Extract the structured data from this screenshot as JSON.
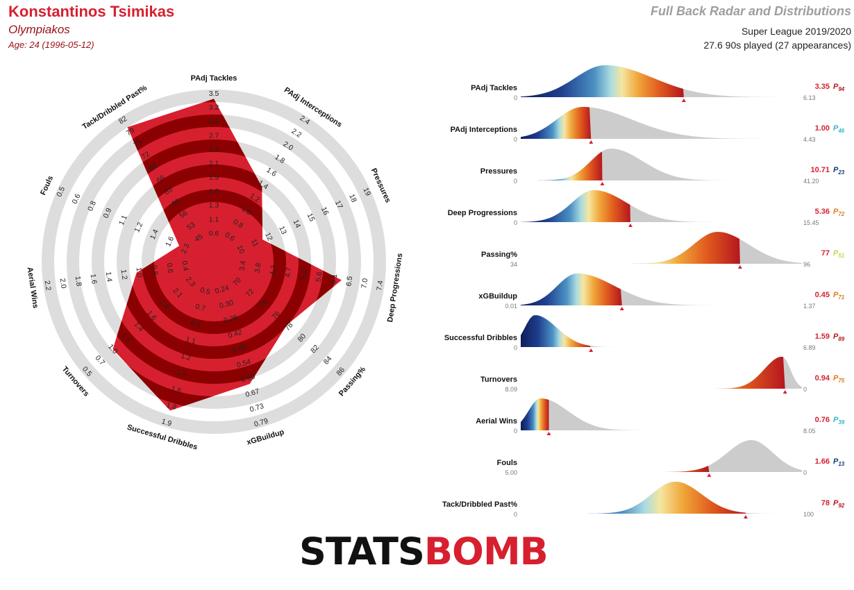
{
  "header": {
    "player_name": "Konstantinos Tsimikas",
    "team": "Olympiakos",
    "age": "Age: 24 (1996-05-12)",
    "title": "Full Back Radar and Distributions",
    "competition": "Super League 2019/2020",
    "minutes": "27.6 90s played (27 appearances)"
  },
  "logo": {
    "part1": "STATS",
    "part2": "BOMB"
  },
  "colors": {
    "accent": "#d7202f",
    "dark_red": "#8b0000",
    "grey": "#dddddd"
  },
  "chart_data": [
    {
      "type": "radar",
      "axes": [
        {
          "label": "PAdj Tackles",
          "ticks": [
            "0.6",
            "1.1",
            "1.3",
            "1.6",
            "1.9",
            "2.1",
            "2.4",
            "2.7",
            "2.9",
            "3.2",
            "3.5"
          ],
          "value": 3.35,
          "fraction": 0.94
        },
        {
          "label": "PAdj Interceptions",
          "ticks": [
            "0.6",
            "0.8",
            "1.0",
            "1.2",
            "1.4",
            "1.6",
            "1.8",
            "2.0",
            "2.2",
            "2.4"
          ],
          "value": 1.0,
          "fraction": 0.46
        },
        {
          "label": "Pressures",
          "ticks": [
            "10",
            "11",
            "12",
            "13",
            "14",
            "15",
            "16",
            "17",
            "18",
            "19"
          ],
          "value": 10.71,
          "fraction": 0.23
        },
        {
          "label": "Deep Progressions",
          "ticks": [
            "3.4",
            "3.8",
            "4.3",
            "4.7",
            "5.2",
            "5.6",
            "6.1",
            "6.5",
            "7.0",
            "7.4"
          ],
          "value": 5.36,
          "fraction": 0.72
        },
        {
          "label": "Passing%",
          "ticks": [
            "70",
            "72",
            "74",
            "76",
            "78",
            "80",
            "82",
            "84",
            "86"
          ],
          "value": 77,
          "fraction": 0.51
        },
        {
          "label": "xGBuildup",
          "ticks": [
            "0.24",
            "0.30",
            "0.36",
            "0.42",
            "0.48",
            "0.54",
            "0.60",
            "0.67",
            "0.73",
            "0.79"
          ],
          "value": 0.45,
          "fraction": 0.71
        },
        {
          "label": "Successful Dribbles",
          "ticks": [
            "0.5",
            "0.7",
            "0.9",
            "1.1",
            "1.2",
            "1.4",
            "1.6",
            "1.8",
            "1.9"
          ],
          "value": 1.59,
          "fraction": 0.89
        },
        {
          "label": "Turnovers",
          "ticks": [
            "2.3",
            "2.1",
            "1.8",
            "1.6",
            "1.4",
            "1.3",
            "1.0",
            "0.7",
            "0.5"
          ],
          "value": 0.94,
          "fraction": 0.75
        },
        {
          "label": "Aerial Wins",
          "ticks": [
            "0.4",
            "0.6",
            "0.8",
            "1.0",
            "1.2",
            "1.4",
            "1.6",
            "1.8",
            "2.0",
            "2.2"
          ],
          "value": 0.76,
          "fraction": 0.39
        },
        {
          "label": "Fouls",
          "ticks": [
            "2.3",
            "1.6",
            "1.4",
            "1.2",
            "1.1",
            "0.9",
            "0.8",
            "0.6",
            "0.5"
          ],
          "value": 1.66,
          "fraction": 0.13
        },
        {
          "label": "Tack/Dribbled Past%",
          "ticks": [
            "45",
            "53",
            "56",
            "60",
            "63",
            "66",
            "68",
            "72",
            "75",
            "79",
            "82"
          ],
          "value": 78,
          "fraction": 0.92
        }
      ]
    },
    {
      "type": "area",
      "rows": [
        {
          "label": "PAdj Tackles",
          "min": "0",
          "max": "6.13",
          "value": "3.35",
          "percentile": "94",
          "pcolor": "#b5161e",
          "peak": 0.3,
          "width": 0.15,
          "skew": 1.6,
          "marker": 0.58,
          "order": "asc"
        },
        {
          "label": "PAdj Interceptions",
          "min": "0",
          "max": "4.43",
          "value": "1.00",
          "percentile": "46",
          "pcolor": "#36b3c9",
          "peak": 0.22,
          "width": 0.13,
          "skew": 1.9,
          "marker": 0.25,
          "order": "asc"
        },
        {
          "label": "Pressures",
          "min": "0",
          "max": "41.20",
          "value": "10.71",
          "percentile": "23",
          "pcolor": "#123a7a",
          "peak": 0.32,
          "width": 0.1,
          "skew": 1.6,
          "marker": 0.29,
          "order": "asc"
        },
        {
          "label": "Deep Progressions",
          "min": "0",
          "max": "15.45",
          "value": "5.36",
          "percentile": "72",
          "pcolor": "#e07a1e",
          "peak": 0.26,
          "width": 0.11,
          "skew": 1.5,
          "marker": 0.39,
          "order": "asc"
        },
        {
          "label": "Passing%",
          "min": "34",
          "max": "96",
          "value": "77",
          "percentile": "51",
          "pcolor": "#c8d44a",
          "peak": 0.7,
          "width": 0.12,
          "skew": 1.3,
          "marker": 0.78,
          "order": "asc"
        },
        {
          "label": "xGBuildup",
          "min": "0.01",
          "max": "1.37",
          "value": "0.45",
          "percentile": "71",
          "pcolor": "#e07a1e",
          "peak": 0.2,
          "width": 0.1,
          "skew": 1.9,
          "marker": 0.36,
          "order": "asc"
        },
        {
          "label": "Successful Dribbles",
          "min": "0",
          "max": "6.89",
          "value": "1.59",
          "percentile": "89",
          "pcolor": "#b5161e",
          "peak": 0.05,
          "width": 0.05,
          "skew": 2.2,
          "marker": 0.25,
          "order": "asc"
        },
        {
          "label": "Turnovers",
          "min": "8.09",
          "max": "0",
          "value": "0.94",
          "percentile": "75",
          "pcolor": "#e07a1e",
          "peak": 0.93,
          "width": 0.09,
          "skew": 0.45,
          "marker": 0.94,
          "order": "desc"
        },
        {
          "label": "Aerial Wins",
          "min": "0",
          "max": "8.05",
          "value": "0.76",
          "percentile": "39",
          "pcolor": "#36b3c9",
          "peak": 0.07,
          "width": 0.06,
          "skew": 2.3,
          "marker": 0.1,
          "order": "asc"
        },
        {
          "label": "Fouls",
          "min": "5.00",
          "max": "0",
          "value": "1.66",
          "percentile": "13",
          "pcolor": "#123a7a",
          "peak": 0.82,
          "width": 0.12,
          "skew": 0.9,
          "marker": 0.67,
          "order": "desc"
        },
        {
          "label": "Tack/Dribbled Past%",
          "min": "0",
          "max": "100",
          "value": "78",
          "percentile": "92",
          "pcolor": "#b5161e",
          "peak": 0.55,
          "width": 0.12,
          "skew": 1.1,
          "marker": 0.8,
          "order": "asc"
        }
      ]
    }
  ]
}
